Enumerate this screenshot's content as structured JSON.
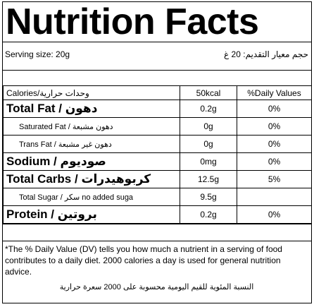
{
  "title": "Nutrition Facts",
  "serving": {
    "en": "Serving size: 20g",
    "ar": "حجم معيار التقديم: 20 غ"
  },
  "header": {
    "calories": "Calories/وحدات حرارية",
    "kcal": "50kcal",
    "dv": "%Daily Values"
  },
  "rows": [
    {
      "name": "Total Fat / دهون",
      "value": "0.2g",
      "dv": "0%"
    },
    {
      "name": "Saturated Fat / دهون مشبعة",
      "value": "0g",
      "dv": "0%"
    },
    {
      "name": "Trans Fat / دهون غير مشبعة",
      "value": "0g",
      "dv": "0%"
    },
    {
      "name": "Sodium / صوديوم",
      "value": "0mg",
      "dv": "0%"
    },
    {
      "name": "Total Carbs / كربوهيدرات",
      "value": "12.5g",
      "dv": "5%"
    },
    {
      "name": "Total Sugar / سكر no added suga",
      "value": "9.5g",
      "dv": ""
    },
    {
      "name": "Protein / بروتين",
      "value": "0.2g",
      "dv": "0%"
    }
  ],
  "footnote": {
    "en": "*The % Daily Value (DV) tells you how much a nutrient in a serving of food contributes to a daily diet. 2000 calories a day is used for general nutrition advice.",
    "ar": "النسبة المئوية للقيم اليومية محسوبة على 2000 سعرة حرارية"
  }
}
